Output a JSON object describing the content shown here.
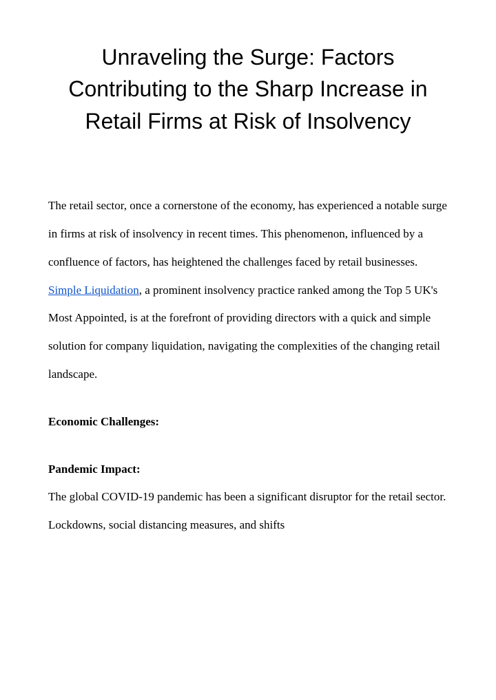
{
  "title": "Unraveling the Surge: Factors Contributing to the Sharp Increase in Retail Firms at Risk of Insolvency",
  "intro": {
    "part1": "The retail sector, once a cornerstone of the economy, has experienced a notable surge in firms at risk of insolvency in recent times. This phenomenon, influenced by a confluence of factors, has heightened the challenges faced by retail businesses. ",
    "link_text": "Simple Liquidation",
    "part2": ", a prominent insolvency practice ranked among the Top 5 UK's Most Appointed, is at the forefront of providing directors with a quick and simple solution for company liquidation, navigating the complexities of the changing retail landscape."
  },
  "section1_heading": "Economic Challenges:",
  "section2_heading": "Pandemic Impact:",
  "section2_body": "The global COVID-19 pandemic has been a significant disruptor for the retail sector. Lockdowns, social distancing measures, and shifts",
  "colors": {
    "text": "#000000",
    "link": "#1155cc",
    "background": "#ffffff"
  }
}
